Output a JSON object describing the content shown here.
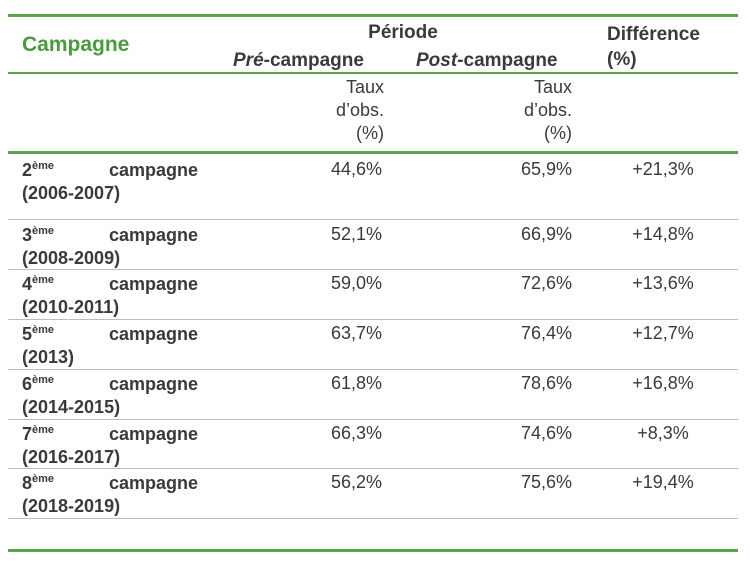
{
  "header": {
    "campagne": "Campagne",
    "periode": "Période",
    "difference_line1": "Différence",
    "difference_line2": "(%)",
    "pre_italic": "Pré",
    "pre_rest": "-campagne",
    "post_italic": "Post",
    "post_rest": "-campagne",
    "taux_line1": "Taux",
    "taux_line2": "d’obs.",
    "taux_line3": "(%)"
  },
  "rows": [
    {
      "num": "2",
      "sup": "ème",
      "word": "campagne",
      "years": "(2006-2007)",
      "pre": "44,6%",
      "post": "65,9%",
      "diff": "+21,3%"
    },
    {
      "num": "3",
      "sup": "ème",
      "word": "campagne",
      "years": "(2008-2009)",
      "pre": "52,1%",
      "post": "66,9%",
      "diff": "+14,8%"
    },
    {
      "num": "4",
      "sup": "ème",
      "word": "campagne",
      "years": "(2010-2011)",
      "pre": "59,0%",
      "post": "72,6%",
      "diff": "+13,6%"
    },
    {
      "num": "5",
      "sup": "ème",
      "word": "campagne",
      "years": "(2013)",
      "pre": "63,7%",
      "post": "76,4%",
      "diff": "+12,7%"
    },
    {
      "num": "6",
      "sup": "ème",
      "word": "campagne",
      "years": "(2014-2015)",
      "pre": "61,8%",
      "post": "78,6%",
      "diff": "+16,8%"
    },
    {
      "num": "7",
      "sup": "ème",
      "word": "campagne",
      "years": "(2016-2017)",
      "pre": "66,3%",
      "post": "74,6%",
      "diff": "+8,3%"
    },
    {
      "num": "8",
      "sup": "ème",
      "word": "campagne",
      "years": "(2018-2019)",
      "pre": "56,2%",
      "post": "75,6%",
      "diff": "+19,4%"
    }
  ]
}
